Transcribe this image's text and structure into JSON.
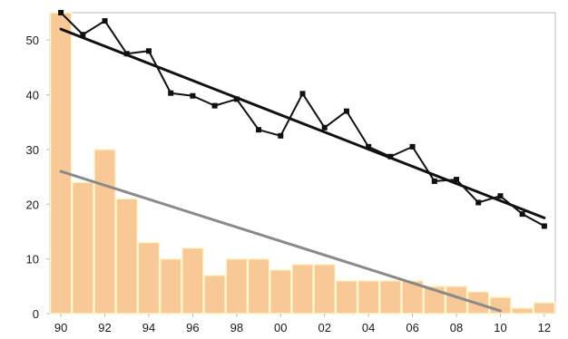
{
  "chart_data": {
    "type": "bar",
    "title": "",
    "xlabel": "",
    "ylabel": "",
    "ylim": [
      0,
      55
    ],
    "y_ticks": [
      "0",
      "10",
      "20",
      "30",
      "40",
      "50"
    ],
    "x_ticks": [
      "90",
      "92",
      "94",
      "96",
      "98",
      "00",
      "02",
      "04",
      "06",
      "08",
      "10",
      "12"
    ],
    "categories": [
      "1990",
      "1991",
      "1992",
      "1993",
      "1994",
      "1995",
      "1996",
      "1997",
      "1998",
      "1999",
      "2000",
      "2001",
      "2002",
      "2003",
      "2004",
      "2005",
      "2006",
      "2007",
      "2008",
      "2009",
      "2010",
      "2011",
      "2012"
    ],
    "grid": false,
    "legend": "none",
    "colors": {
      "bars": "#f8c896",
      "bar_edge": "#fff6cc",
      "line": "#111111",
      "trend_line": "#111111",
      "bar_trend_line": "#8a8a8a",
      "axis": "#bdbdbd"
    },
    "series": [
      {
        "type": "bar",
        "values": [
          55,
          24,
          30,
          21,
          13,
          10,
          12,
          7,
          10,
          10,
          8,
          9,
          9,
          6,
          6,
          6,
          6,
          5,
          5,
          4,
          3,
          1,
          2
        ]
      },
      {
        "type": "line",
        "marker": "square",
        "values": [
          55,
          51,
          53.5,
          47.5,
          48,
          40.3,
          39.8,
          38,
          39.2,
          33.6,
          32.5,
          40.2,
          34,
          37,
          30.5,
          28.7,
          30.5,
          24.2,
          24.5,
          20.3,
          21.5,
          18.2,
          16
        ]
      },
      {
        "type": "trend",
        "from": {
          "x": "1990",
          "y": 52
        },
        "to": {
          "x": "2012",
          "y": 17.5
        }
      },
      {
        "type": "trend",
        "from": {
          "x": "1990",
          "y": 26
        },
        "to": {
          "x": "2010",
          "y": 0.5
        }
      }
    ]
  }
}
